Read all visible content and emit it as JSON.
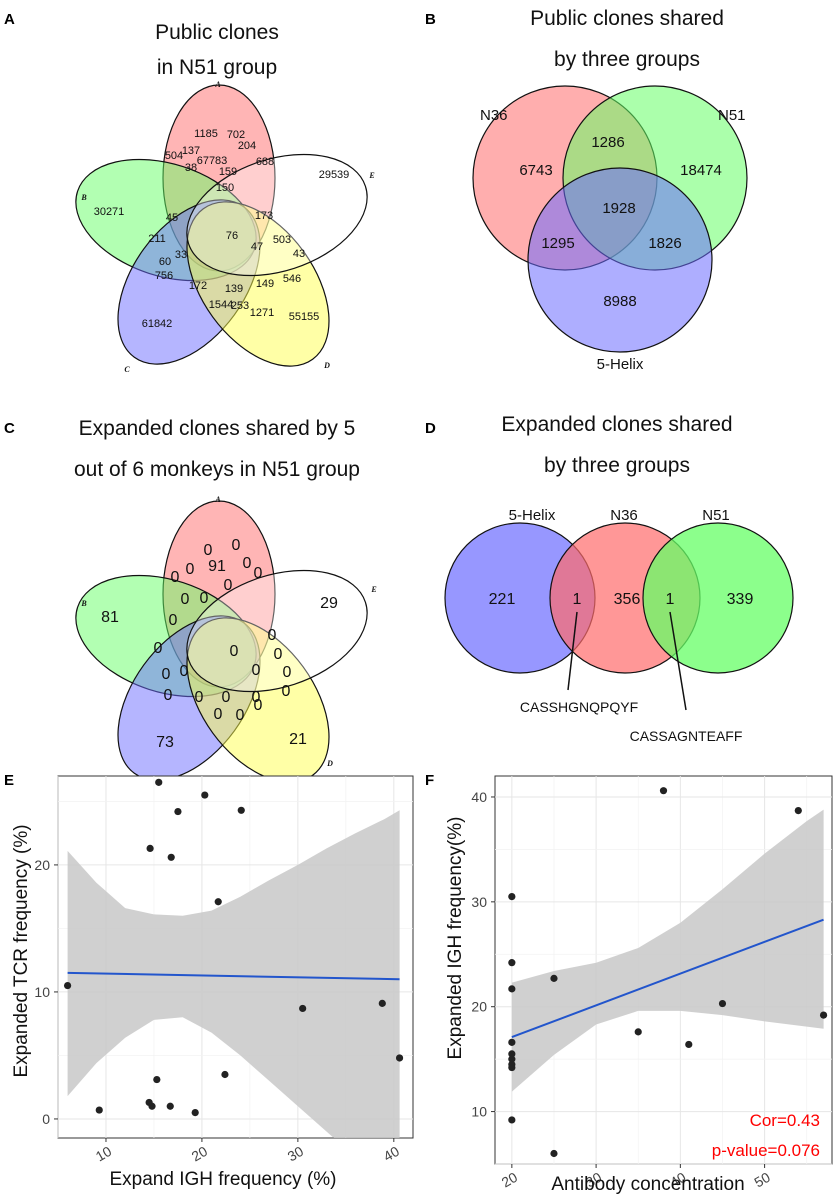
{
  "panels": {
    "A": {
      "letter": "A",
      "title": [
        "Public clones",
        "in N51 group"
      ],
      "set_labels": [
        "A",
        "B",
        "C",
        "D",
        "E"
      ],
      "region_values": [
        "67783",
        "30271",
        "61842",
        "55155",
        "29539",
        "1185",
        "702",
        "204",
        "688",
        "504",
        "137",
        "159",
        "150",
        "38",
        "76",
        "45",
        "211",
        "60",
        "756",
        "173",
        "503",
        "43",
        "47",
        "546",
        "149",
        "139",
        "172",
        "33",
        "1544",
        "253",
        "1271"
      ]
    },
    "B": {
      "letter": "B",
      "title": [
        "Public clones shared",
        "by three groups"
      ],
      "groups": [
        "N36",
        "N51",
        "5-Helix"
      ],
      "region_values": [
        "6743",
        "18474",
        "8988",
        "1286",
        "1295",
        "1826",
        "1928"
      ]
    },
    "C": {
      "letter": "C",
      "title": [
        "Expanded clones shared by 5",
        "out of 6 monkeys in N51 group"
      ],
      "set_labels": [
        "A",
        "B",
        "C",
        "D",
        "E"
      ],
      "region_values": [
        "91",
        "81",
        "73",
        "21",
        "29",
        "0",
        "0",
        "0",
        "0",
        "0",
        "0",
        "0",
        "0",
        "0",
        "0",
        "0",
        "0",
        "0",
        "0",
        "0",
        "0",
        "0",
        "0",
        "0",
        "0",
        "0",
        "0",
        "0",
        "0",
        "0",
        "0"
      ]
    },
    "D": {
      "letter": "D",
      "title": [
        "Expanded clones shared",
        "by three groups"
      ],
      "groups": [
        "5-Helix",
        "N36",
        "N51"
      ],
      "region_values": [
        "221",
        "1",
        "356",
        "1",
        "339"
      ],
      "sequences": [
        "CASSHGNQPQYF",
        "CASSAGNTEAFF"
      ]
    },
    "E": {
      "letter": "E"
    },
    "F": {
      "letter": "F"
    }
  },
  "colors": {
    "red": "#ff6b6b",
    "green": "#66ff66",
    "blue": "#6b6bff",
    "yellow": "#ffff4d",
    "white": "#ffffff",
    "line": "#2255cc",
    "band": "#c8c8c8",
    "point": "#222222",
    "stat": "#ff0000"
  },
  "chart_data": [
    {
      "panel": "E",
      "type": "scatter",
      "xlabel": "Expand IGH frequency (%)",
      "ylabel": "Expanded TCR frequency (%)",
      "xlim": [
        5,
        42
      ],
      "ylim": [
        -1.5,
        27
      ],
      "xticks": [
        10,
        20,
        30,
        40
      ],
      "yticks": [
        0,
        10,
        20
      ],
      "points": [
        [
          6,
          10.5
        ],
        [
          9.3,
          0.7
        ],
        [
          14.5,
          1.3
        ],
        [
          14.6,
          21.3
        ],
        [
          14.8,
          1.0
        ],
        [
          15.3,
          3.1
        ],
        [
          15.5,
          26.5
        ],
        [
          16.7,
          1.0
        ],
        [
          16.8,
          20.6
        ],
        [
          17.5,
          24.2
        ],
        [
          19.3,
          0.5
        ],
        [
          20.3,
          25.5
        ],
        [
          21.7,
          17.1
        ],
        [
          22.4,
          3.5
        ],
        [
          24.1,
          24.3
        ],
        [
          30.5,
          8.7
        ],
        [
          38.8,
          9.1
        ],
        [
          40.6,
          4.8
        ]
      ],
      "fit": {
        "x": [
          6,
          40.6
        ],
        "y": [
          11.5,
          11.0
        ]
      },
      "ci_band": {
        "x": [
          6,
          9,
          12,
          15,
          18,
          21,
          24,
          27,
          30,
          33,
          36,
          39,
          40.6
        ],
        "lower": [
          1.8,
          4.4,
          6.4,
          7.8,
          8.0,
          6.8,
          5.0,
          3.0,
          1.0,
          -1.0,
          -3.0,
          -5.0,
          -6.2
        ],
        "upper": [
          21.1,
          18.6,
          16.6,
          16.1,
          16.0,
          16.4,
          17.5,
          18.8,
          20.0,
          21.3,
          22.5,
          23.6,
          24.3
        ]
      }
    },
    {
      "panel": "F",
      "type": "scatter",
      "xlabel": "Antibody concentration",
      "ylabel": "Expanded IGH frequency(%)",
      "xlim": [
        18,
        58
      ],
      "ylim": [
        5,
        42
      ],
      "xticks": [
        20,
        30,
        40,
        50
      ],
      "yticks": [
        10,
        20,
        30,
        40
      ],
      "points": [
        [
          20,
          30.5
        ],
        [
          20,
          24.2
        ],
        [
          20,
          21.7
        ],
        [
          20,
          16.6
        ],
        [
          20,
          15.5
        ],
        [
          20,
          15.0
        ],
        [
          20,
          14.5
        ],
        [
          20,
          14.2
        ],
        [
          20,
          9.2
        ],
        [
          25,
          22.7
        ],
        [
          25,
          6.0
        ],
        [
          35,
          17.6
        ],
        [
          38,
          40.6
        ],
        [
          41,
          16.4
        ],
        [
          45,
          20.3
        ],
        [
          54,
          38.7
        ],
        [
          57,
          19.2
        ]
      ],
      "fit": {
        "x": [
          20,
          57
        ],
        "y": [
          17.1,
          28.3
        ]
      },
      "ci_band": {
        "x": [
          20,
          25,
          30,
          35,
          40,
          45,
          50,
          55,
          57
        ],
        "lower": [
          11.9,
          15.4,
          18.3,
          19.6,
          19.6,
          19.2,
          18.6,
          18.1,
          17.9
        ],
        "upper": [
          22.3,
          23.4,
          24.2,
          25.6,
          28.0,
          31.2,
          34.6,
          37.7,
          38.8
        ]
      },
      "stats": [
        "Cor=0.43",
        "p-value=0.076"
      ]
    }
  ]
}
